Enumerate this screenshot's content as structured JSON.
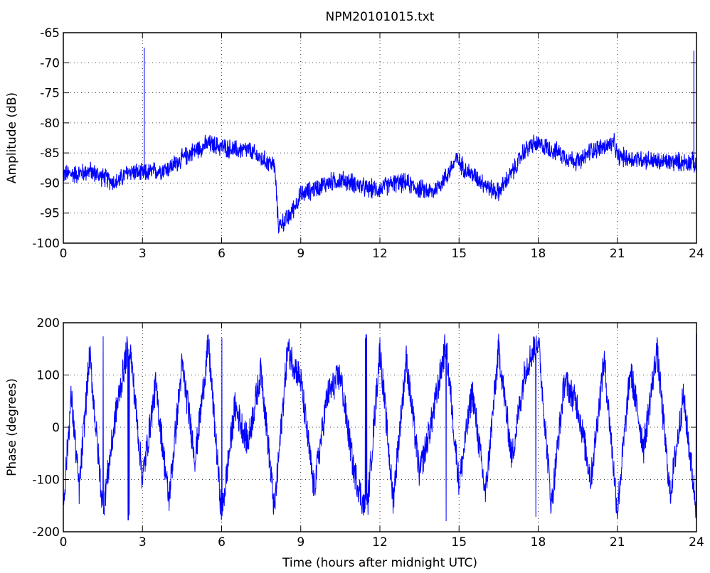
{
  "figure": {
    "title": "NPM20101015.txt"
  },
  "colors": {
    "line": "#0000ff",
    "axis": "#000000",
    "grid": "#000000",
    "background": "#ffffff"
  },
  "chart_data": [
    {
      "type": "line",
      "title": "NPM20101015.txt",
      "xlabel": "",
      "ylabel": "Amplitude (dB)",
      "xlim": [
        0,
        24
      ],
      "ylim": [
        -100,
        -65
      ],
      "xticks": [
        0,
        3,
        6,
        9,
        12,
        15,
        18,
        21,
        24
      ],
      "yticks": [
        -100,
        -95,
        -90,
        -85,
        -80,
        -75,
        -70,
        -65
      ],
      "grid": true,
      "noise_amplitude_db": 1.2,
      "series": [
        {
          "x": [
            0,
            0.5,
            1,
            1.5,
            2,
            2.5,
            3,
            3.5,
            4,
            4.5,
            5,
            5.5,
            6,
            6.5,
            7,
            7.5,
            8,
            8.05,
            8.15,
            8.5,
            9,
            9.5,
            10,
            10.5,
            11,
            11.5,
            12,
            12.5,
            13,
            13.5,
            14,
            14.5,
            14.9,
            15.3,
            15.8,
            16.2,
            16.5,
            16.9,
            17.2,
            17.4,
            17.8,
            18.3,
            18.8,
            19.2,
            19.6,
            20,
            20.5,
            20.9,
            21,
            21.5,
            22,
            22.5,
            23,
            23.5,
            23.9,
            24
          ],
          "y": [
            -88.5,
            -88.5,
            -88,
            -89,
            -90,
            -88,
            -88.5,
            -88,
            -87.5,
            -86,
            -84.5,
            -83.5,
            -84,
            -84.5,
            -84.5,
            -86,
            -87,
            -90,
            -97,
            -96,
            -92,
            -91,
            -90,
            -89.5,
            -90,
            -91,
            -91,
            -90,
            -90,
            -91,
            -91.5,
            -89,
            -86,
            -88,
            -89.5,
            -91,
            -91.5,
            -89,
            -87,
            -85,
            -83.5,
            -84,
            -85,
            -86,
            -86.5,
            -84.5,
            -84,
            -83.5,
            -85.5,
            -86,
            -86,
            -86.5,
            -86.5,
            -86.5,
            -86.5,
            -88
          ],
          "spikes": [
            {
              "x": 3.07,
              "y": -67.5
            },
            {
              "x": 23.9,
              "y": -68
            }
          ]
        }
      ]
    },
    {
      "type": "line",
      "title": "",
      "xlabel": "Time (hours after midnight UTC)",
      "ylabel": "Phase (degrees)",
      "xlim": [
        0,
        24
      ],
      "ylim": [
        -200,
        200
      ],
      "xticks": [
        0,
        3,
        6,
        9,
        12,
        15,
        18,
        21,
        24
      ],
      "yticks": [
        -200,
        -100,
        0,
        100,
        200
      ],
      "grid": true,
      "wrap_range": [
        -180,
        180
      ],
      "series": [
        {
          "x": [
            0,
            0.3,
            0.6,
            1,
            1.5,
            2,
            2.5,
            3,
            3.5,
            4,
            4.5,
            5,
            5.5,
            6,
            6.5,
            7,
            7.5,
            8,
            8.5,
            9,
            9.5,
            10,
            10.5,
            11,
            11.5,
            12,
            12.5,
            13,
            13.5,
            14,
            14.5,
            15,
            15.5,
            16,
            16.5,
            17,
            17.5,
            18,
            18.5,
            19,
            19.5,
            20,
            20.5,
            21,
            21.5,
            22,
            22.5,
            23,
            23.5,
            24
          ],
          "y": [
            -150,
            60,
            -120,
            140,
            -160,
            30,
            170,
            -100,
            80,
            -140,
            120,
            -60,
            160,
            -170,
            40,
            -30,
            110,
            -160,
            150,
            90,
            -120,
            60,
            100,
            -80,
            -170,
            150,
            -140,
            130,
            -90,
            20,
            160,
            -110,
            70,
            -130,
            150,
            -60,
            110,
            170,
            -150,
            90,
            40,
            -100,
            130,
            -160,
            110,
            -40,
            150,
            -130,
            60,
            -160
          ]
        }
      ]
    }
  ]
}
